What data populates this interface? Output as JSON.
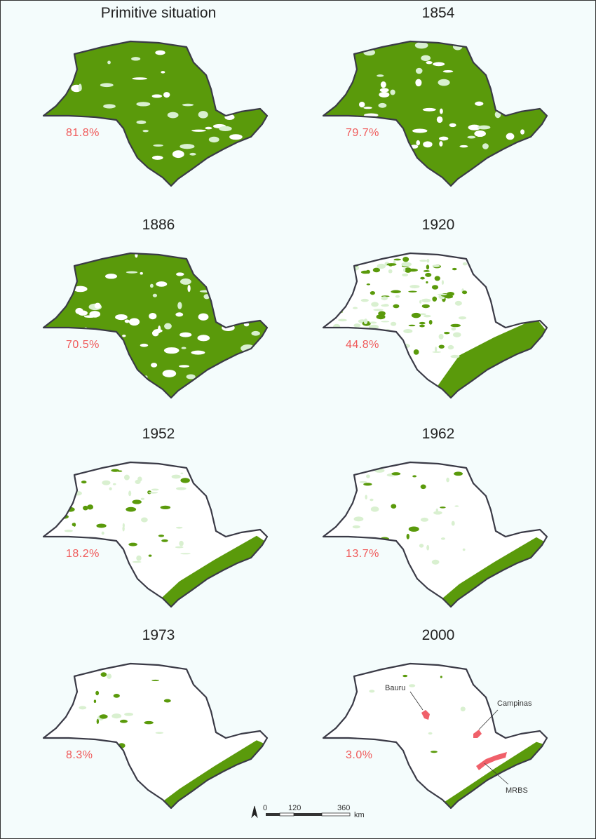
{
  "panels": [
    {
      "title": "Primitive situation",
      "percent": "81.8%",
      "forest_cover": 0.818
    },
    {
      "title": "1854",
      "percent": "79.7%",
      "forest_cover": 0.797
    },
    {
      "title": "1886",
      "percent": "70.5%",
      "forest_cover": 0.705
    },
    {
      "title": "1920",
      "percent": "44.8%",
      "forest_cover": 0.448
    },
    {
      "title": "1952",
      "percent": "18.2%",
      "forest_cover": 0.182
    },
    {
      "title": "1962",
      "percent": "13.7%",
      "forest_cover": 0.137
    },
    {
      "title": "1973",
      "percent": "8.3%",
      "forest_cover": 0.083
    },
    {
      "title": "2000",
      "percent": "3.0%",
      "forest_cover": 0.03
    }
  ],
  "annotations": {
    "bauru": "Bauru",
    "campinas": "Campinas",
    "mrbs": "MRBS"
  },
  "scale": {
    "tick_0": "0",
    "tick_1": "120",
    "tick_2": "360",
    "unit": "km"
  },
  "colors": {
    "forest": "#5a9a0b",
    "light_forest": "#d9f0d0",
    "land": "#ffffff",
    "outline": "#3a3a46",
    "highlight": "#f0606a",
    "percent_text": "#f05a5a",
    "background": "#f4fcfc"
  }
}
